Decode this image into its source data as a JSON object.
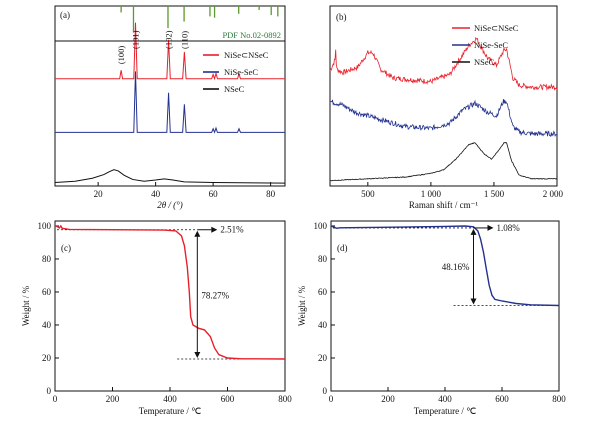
{
  "colors": {
    "red": "#e8202a",
    "blue": "#23318f",
    "black": "#111111",
    "pdf_green": "#5a9a2e",
    "pdf_text": "#2e7a3a"
  },
  "chart_data": [
    {
      "id": "a",
      "type": "line",
      "panel_label": "(a)",
      "xlabel": "2θ / (°)",
      "xlim": [
        5,
        85
      ],
      "xticks": [
        20,
        40,
        60,
        80
      ],
      "grid": false,
      "legend_position": "top-right",
      "reference_label": "PDF No.02-0892",
      "reference_peaks": [
        28.0,
        32.3,
        44.3,
        49.9,
        58.9,
        60.5,
        68.9,
        76.0,
        80.2,
        82.5
      ],
      "peak_labels": [
        {
          "text": "(100)",
          "x": 28.0
        },
        {
          "text": "(101)",
          "x": 33.0
        },
        {
          "text": "(102)",
          "x": 44.5
        },
        {
          "text": "(110)",
          "x": 50.0
        }
      ],
      "series": [
        {
          "name": "NiSe⊂NSeC",
          "color": "red",
          "offset": 0.74,
          "points": [
            [
              5,
              0
            ],
            [
              27.5,
              0
            ],
            [
              28.0,
              0.14
            ],
            [
              28.5,
              0
            ],
            [
              32.4,
              0
            ],
            [
              33.0,
              0.92
            ],
            [
              33.6,
              0
            ],
            [
              43.9,
              0
            ],
            [
              44.5,
              0.64
            ],
            [
              45.1,
              0
            ],
            [
              49.4,
              0
            ],
            [
              50.0,
              0.44
            ],
            [
              50.6,
              0
            ],
            [
              59.5,
              0
            ],
            [
              60.0,
              0.07
            ],
            [
              60.5,
              0
            ],
            [
              61.0,
              0.09
            ],
            [
              61.5,
              0
            ],
            [
              68.5,
              0
            ],
            [
              69.0,
              0.08
            ],
            [
              69.5,
              0
            ],
            [
              85,
              0
            ]
          ]
        },
        {
          "name": "NiSe-SeC",
          "color": "blue",
          "offset": 0.37,
          "points": [
            [
              5,
              0
            ],
            [
              32.4,
              0
            ],
            [
              33.0,
              1.0
            ],
            [
              33.6,
              0
            ],
            [
              43.9,
              0
            ],
            [
              44.5,
              0.65
            ],
            [
              45.1,
              0
            ],
            [
              49.4,
              0
            ],
            [
              50.0,
              0.46
            ],
            [
              50.6,
              0
            ],
            [
              59.5,
              0
            ],
            [
              60.0,
              0.06
            ],
            [
              60.5,
              0
            ],
            [
              61.0,
              0.07
            ],
            [
              61.5,
              0
            ],
            [
              68.5,
              0
            ],
            [
              69.0,
              0.06
            ],
            [
              69.5,
              0
            ],
            [
              85,
              0
            ]
          ]
        },
        {
          "name": "NSeC",
          "color": "black",
          "offset": 0.02,
          "points": [
            [
              5,
              0.01
            ],
            [
              12,
              0.03
            ],
            [
              18,
              0.08
            ],
            [
              22,
              0.14
            ],
            [
              24,
              0.19
            ],
            [
              25.5,
              0.22
            ],
            [
              27,
              0.2
            ],
            [
              29,
              0.13
            ],
            [
              32,
              0.06
            ],
            [
              36,
              0.03
            ],
            [
              40,
              0.05
            ],
            [
              43,
              0.07
            ],
            [
              46,
              0.05
            ],
            [
              50,
              0.02
            ],
            [
              60,
              0.01
            ],
            [
              85,
              0
            ]
          ]
        }
      ]
    },
    {
      "id": "b",
      "type": "line",
      "panel_label": "(b)",
      "xlabel": "Raman shift / cm⁻¹",
      "xlim": [
        200,
        2000
      ],
      "xticks": [
        500,
        1000,
        1500,
        2000
      ],
      "xtick_labels": [
        "500",
        "1 000",
        "1 500",
        "2 000"
      ],
      "grid": false,
      "legend_position": "top-right",
      "series": [
        {
          "name": "NiSe⊂NSeC",
          "color": "red",
          "offset": 0.5,
          "points": [
            [
              200,
              0.14
            ],
            [
              240,
              0.2
            ],
            [
              245,
              0.26
            ],
            [
              252,
              0.15
            ],
            [
              300,
              0.13
            ],
            [
              420,
              0.16
            ],
            [
              500,
              0.24
            ],
            [
              540,
              0.24
            ],
            [
              600,
              0.15
            ],
            [
              700,
              0.1
            ],
            [
              850,
              0.09
            ],
            [
              1000,
              0.08
            ],
            [
              1150,
              0.12
            ],
            [
              1300,
              0.28
            ],
            [
              1360,
              0.32
            ],
            [
              1450,
              0.21
            ],
            [
              1520,
              0.17
            ],
            [
              1575,
              0.25
            ],
            [
              1600,
              0.26
            ],
            [
              1650,
              0.1
            ],
            [
              1700,
              0.06
            ],
            [
              1800,
              0.05
            ],
            [
              2000,
              0.05
            ]
          ]
        },
        {
          "name": "NiSe-SeC",
          "color": "blue",
          "offset": 0.25,
          "points": [
            [
              200,
              0.22
            ],
            [
              300,
              0.2
            ],
            [
              400,
              0.16
            ],
            [
              500,
              0.14
            ],
            [
              600,
              0.12
            ],
            [
              800,
              0.08
            ],
            [
              1000,
              0.07
            ],
            [
              1150,
              0.1
            ],
            [
              1250,
              0.17
            ],
            [
              1350,
              0.21
            ],
            [
              1450,
              0.16
            ],
            [
              1520,
              0.14
            ],
            [
              1575,
              0.22
            ],
            [
              1600,
              0.22
            ],
            [
              1650,
              0.08
            ],
            [
              1700,
              0.05
            ],
            [
              1800,
              0.04
            ],
            [
              2000,
              0.04
            ]
          ]
        },
        {
          "name": "NSeC",
          "color": "black",
          "offset": 0.02,
          "points": [
            [
              200,
              0.01
            ],
            [
              500,
              0.02
            ],
            [
              800,
              0.03
            ],
            [
              1000,
              0.05
            ],
            [
              1100,
              0.07
            ],
            [
              1200,
              0.13
            ],
            [
              1300,
              0.21
            ],
            [
              1350,
              0.22
            ],
            [
              1420,
              0.16
            ],
            [
              1480,
              0.13
            ],
            [
              1540,
              0.18
            ],
            [
              1580,
              0.22
            ],
            [
              1600,
              0.22
            ],
            [
              1640,
              0.12
            ],
            [
              1700,
              0.04
            ],
            [
              1800,
              0.02
            ],
            [
              2000,
              0.02
            ]
          ]
        }
      ]
    },
    {
      "id": "c",
      "type": "line",
      "panel_label": "(c)",
      "xlabel": "Temperature / ℃",
      "ylabel": "Weight / %",
      "xlim": [
        0,
        800
      ],
      "ylim": [
        0,
        103
      ],
      "xticks": [
        0,
        200,
        400,
        600,
        800
      ],
      "yticks": [
        0,
        20,
        40,
        60,
        80,
        100
      ],
      "grid": false,
      "series": [
        {
          "name": "NiSe⊂NSeC",
          "color": "red",
          "points": [
            [
              0,
              100
            ],
            [
              8,
              99.6
            ],
            [
              15,
              98.8
            ],
            [
              20,
              100
            ],
            [
              25,
              98.6
            ],
            [
              50,
              97.9
            ],
            [
              200,
              97.7
            ],
            [
              380,
              97.5
            ],
            [
              420,
              97.0
            ],
            [
              440,
              94
            ],
            [
              450,
              88
            ],
            [
              460,
              75
            ],
            [
              467,
              60
            ],
            [
              472,
              45
            ],
            [
              480,
              40
            ],
            [
              500,
              38
            ],
            [
              520,
              37
            ],
            [
              540,
              33
            ],
            [
              555,
              26
            ],
            [
              570,
              22
            ],
            [
              600,
              20
            ],
            [
              650,
              19.5
            ],
            [
              800,
              19.4
            ]
          ]
        }
      ],
      "annotations": [
        {
          "text": "2.51%",
          "x": 540,
          "y": 97.5
        },
        {
          "text": "78.27%",
          "x": 533,
          "y": 58
        }
      ],
      "dashed_levels": [
        97.7,
        19.4
      ]
    },
    {
      "id": "d",
      "type": "line",
      "panel_label": "(d)",
      "xlabel": "Temperature / ℃",
      "ylabel": "Weight / %",
      "xlim": [
        0,
        800
      ],
      "ylim": [
        0,
        103
      ],
      "xticks": [
        0,
        200,
        400,
        600,
        800
      ],
      "yticks": [
        0,
        20,
        40,
        60,
        80,
        100
      ],
      "grid": false,
      "series": [
        {
          "name": "NiSe-SeC",
          "color": "blue",
          "points": [
            [
              0,
              100
            ],
            [
              10,
              99.3
            ],
            [
              20,
              98.6
            ],
            [
              30,
              98.9
            ],
            [
              100,
              99.0
            ],
            [
              250,
              99.3
            ],
            [
              400,
              99.7
            ],
            [
              470,
              100.0
            ],
            [
              500,
              99.5
            ],
            [
              515,
              97
            ],
            [
              525,
              92
            ],
            [
              535,
              84
            ],
            [
              545,
              74
            ],
            [
              555,
              64
            ],
            [
              565,
              58
            ],
            [
              575,
              55.5
            ],
            [
              600,
              54.5
            ],
            [
              650,
              53
            ],
            [
              700,
              52.2
            ],
            [
              800,
              51.8
            ]
          ]
        }
      ],
      "annotations": [
        {
          "text": "1.08%",
          "x": 543,
          "y": 98.8
        },
        {
          "text": "48.16%",
          "x": 503,
          "y": 75
        }
      ],
      "dashed_levels": [
        98.8,
        51.8
      ]
    }
  ]
}
